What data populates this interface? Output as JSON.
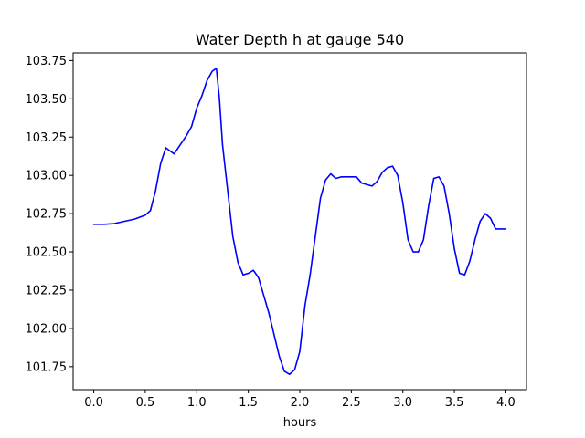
{
  "chart_data": {
    "type": "line",
    "title": "Water Depth h at gauge 540",
    "xlabel": "hours",
    "ylabel": "",
    "xlim": [
      -0.2,
      4.2
    ],
    "ylim": [
      101.6,
      103.8
    ],
    "x_ticks": [
      0.0,
      0.5,
      1.0,
      1.5,
      2.0,
      2.5,
      3.0,
      3.5,
      4.0
    ],
    "x_tick_labels": [
      "0.0",
      "0.5",
      "1.0",
      "1.5",
      "2.0",
      "2.5",
      "3.0",
      "3.5",
      "4.0"
    ],
    "y_ticks": [
      101.75,
      102.0,
      102.25,
      102.5,
      102.75,
      103.0,
      103.25,
      103.5,
      103.75
    ],
    "y_tick_labels": [
      "101.75",
      "102.00",
      "102.25",
      "102.50",
      "102.75",
      "103.00",
      "103.25",
      "103.50",
      "103.75"
    ],
    "grid": false,
    "legend": null,
    "series": [
      {
        "color": "#0000ff",
        "x": [
          0.0,
          0.1,
          0.2,
          0.3,
          0.4,
          0.5,
          0.55,
          0.6,
          0.65,
          0.7,
          0.74,
          0.78,
          0.82,
          0.86,
          0.9,
          0.95,
          1.0,
          1.05,
          1.1,
          1.15,
          1.19,
          1.22,
          1.25,
          1.3,
          1.35,
          1.4,
          1.45,
          1.5,
          1.55,
          1.6,
          1.7,
          1.8,
          1.85,
          1.9,
          1.95,
          2.0,
          2.05,
          2.1,
          2.15,
          2.2,
          2.25,
          2.3,
          2.35,
          2.4,
          2.45,
          2.5,
          2.55,
          2.6,
          2.65,
          2.7,
          2.75,
          2.8,
          2.85,
          2.9,
          2.95,
          3.0,
          3.05,
          3.1,
          3.15,
          3.2,
          3.25,
          3.3,
          3.35,
          3.4,
          3.45,
          3.5,
          3.55,
          3.6,
          3.65,
          3.7,
          3.75,
          3.8,
          3.85,
          3.9,
          3.95,
          4.0
        ],
        "y": [
          102.68,
          102.68,
          102.685,
          102.7,
          102.715,
          102.74,
          102.77,
          102.9,
          103.08,
          103.18,
          103.16,
          103.14,
          103.18,
          103.22,
          103.26,
          103.32,
          103.44,
          103.52,
          103.62,
          103.68,
          103.7,
          103.5,
          103.2,
          102.9,
          102.6,
          102.43,
          102.35,
          102.36,
          102.38,
          102.33,
          102.1,
          101.82,
          101.72,
          101.7,
          101.73,
          101.85,
          102.15,
          102.35,
          102.6,
          102.85,
          102.97,
          103.01,
          102.98,
          102.99,
          102.99,
          102.99,
          102.99,
          102.95,
          102.94,
          102.93,
          102.96,
          103.02,
          103.05,
          103.06,
          103.0,
          102.82,
          102.58,
          102.5,
          102.5,
          102.58,
          102.8,
          102.98,
          102.99,
          102.93,
          102.75,
          102.52,
          102.36,
          102.35,
          102.44,
          102.58,
          102.7,
          102.75,
          102.72,
          102.65,
          102.65,
          102.65
        ]
      }
    ]
  }
}
